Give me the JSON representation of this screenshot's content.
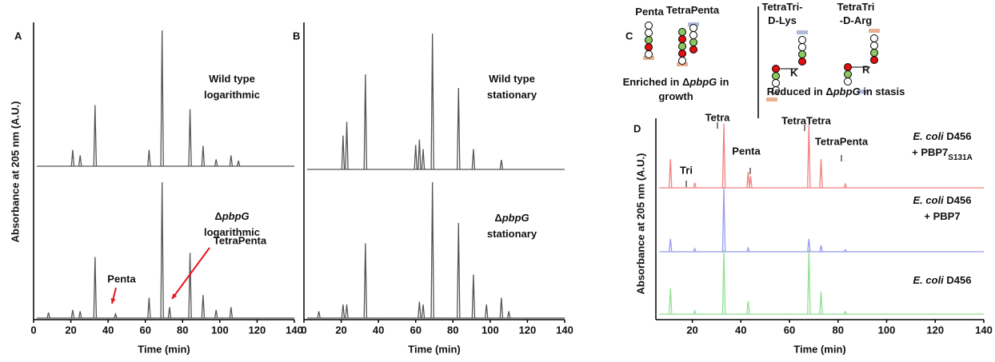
{
  "chart_data": [
    {
      "type": "peaks",
      "panel": "A",
      "xlabel": "Time (min)",
      "ylabel": "Absorbance at 205 nm (A.U.)",
      "xlim": [
        0,
        140
      ],
      "xticks": [
        0,
        20,
        40,
        60,
        80,
        100,
        120,
        140
      ],
      "ylim": [
        0,
        100
      ],
      "traces": [
        {
          "label": [
            [
              {
                "text": "Wild type"
              }
            ],
            [
              {
                "text": "logarithmic"
              }
            ]
          ],
          "color": "#555555",
          "x": [
            21,
            25,
            33,
            62,
            69,
            84,
            91,
            98,
            106,
            110
          ],
          "values": [
            12,
            8,
            45,
            12,
            100,
            42,
            15,
            5,
            8,
            4
          ]
        },
        {
          "label": [
            [
              {
                "text": "Δ"
              },
              {
                "text": "pbpG",
                "italic": true
              }
            ],
            [
              {
                "text": "logarithmic"
              }
            ]
          ],
          "color": "#555555",
          "x": [
            8,
            21,
            25,
            33,
            44,
            62,
            69,
            73,
            84,
            91,
            98,
            106
          ],
          "values": [
            4,
            6,
            5,
            45,
            3,
            15,
            100,
            8,
            48,
            17,
            6,
            8
          ]
        }
      ],
      "annotations": [
        {
          "text": "Penta",
          "color": "#e8141b"
        },
        {
          "text": "TetraPenta",
          "color": "#e8141b"
        }
      ]
    },
    {
      "type": "peaks",
      "panel": "B",
      "xlabel": "Time (min)",
      "xlim": [
        0,
        140
      ],
      "xticks": [
        0,
        20,
        40,
        60,
        80,
        100,
        120,
        140
      ],
      "ylim": [
        0,
        100
      ],
      "traces": [
        {
          "label": [
            [
              {
                "text": "Wild type"
              }
            ],
            [
              {
                "text": "stationary"
              }
            ]
          ],
          "color": "#555555",
          "x": [
            21,
            23,
            33,
            60,
            62,
            64,
            69,
            83,
            91,
            106
          ],
          "values": [
            25,
            35,
            70,
            18,
            22,
            15,
            100,
            60,
            15,
            7
          ]
        },
        {
          "label": [
            [
              {
                "text": "Δ"
              },
              {
                "text": "pbpG",
                "italic": true
              }
            ],
            [
              {
                "text": "stationary"
              }
            ]
          ],
          "color": "#555555",
          "x": [
            8,
            21,
            23,
            33,
            62,
            64,
            69,
            83,
            91,
            98,
            106,
            110
          ],
          "values": [
            5,
            10,
            10,
            55,
            12,
            10,
            100,
            70,
            32,
            10,
            15,
            5
          ]
        }
      ],
      "annotations": []
    },
    {
      "type": "peaks",
      "panel": "D",
      "xlabel": "Time (min)",
      "ylabel": "Absorbance at 205 nm (A.U.)",
      "xlim": [
        5,
        140
      ],
      "xticks": [
        20,
        40,
        60,
        80,
        100,
        120,
        140
      ],
      "ylim": [
        0,
        100
      ],
      "traces": [
        {
          "label": [
            [
              {
                "text": "E. coli",
                "italic": true
              },
              {
                "text": " D456"
              }
            ],
            [
              {
                "text": "+ PBP7"
              },
              {
                "text": "S131A",
                "sub": true
              }
            ]
          ],
          "color": "#f08080",
          "x": [
            11,
            21,
            33,
            43,
            44,
            68,
            73,
            83
          ],
          "values": [
            45,
            8,
            100,
            25,
            18,
            100,
            45,
            6
          ]
        },
        {
          "label": [
            [
              {
                "text": "E. coli",
                "italic": true
              },
              {
                "text": " D456"
              }
            ],
            [
              {
                "text": "+ PBP7"
              }
            ]
          ],
          "color": "#9a9af0",
          "x": [
            11,
            21,
            33,
            43,
            68,
            73,
            83
          ],
          "values": [
            20,
            5,
            100,
            6,
            20,
            10,
            3
          ]
        },
        {
          "label": [
            [
              {
                "text": "E. coli",
                "italic": true
              },
              {
                "text": " D456"
              }
            ]
          ],
          "color": "#90e090",
          "x": [
            11,
            21,
            33,
            43,
            68,
            73,
            83
          ],
          "values": [
            40,
            5,
            100,
            20,
            100,
            35,
            4
          ]
        }
      ],
      "annotations": [
        {
          "text": "Tri"
        },
        {
          "text": "Tetra"
        },
        {
          "text": "Penta"
        },
        {
          "text": "TetraTetra"
        },
        {
          "text": "TetraPenta"
        }
      ]
    }
  ],
  "diagram": {
    "panel": "C",
    "structures": [
      [
        [
          {
            "text": "Penta"
          }
        ]
      ],
      [
        [
          {
            "text": "TetraPenta"
          }
        ]
      ],
      [
        [
          {
            "text": "TetraTri-"
          }
        ],
        [
          {
            "text": "D-Lys"
          }
        ]
      ],
      [
        [
          {
            "text": "TetraTri"
          }
        ],
        [
          {
            "text": "-D-Arg"
          }
        ]
      ]
    ],
    "residues": [
      "K",
      "R"
    ],
    "captions": [
      [
        [
          {
            "text": "Enriched in "
          },
          {
            "text": "Δ"
          },
          {
            "text": "pbpG",
            "italic": true
          },
          {
            "text": " in"
          }
        ],
        [
          {
            "text": "growth"
          }
        ]
      ],
      [
        [
          {
            "text": "Reduced in "
          },
          {
            "text": "Δ"
          },
          {
            "text": "pbpG",
            "italic": true
          },
          {
            "text": " in stasis"
          }
        ]
      ]
    ]
  }
}
